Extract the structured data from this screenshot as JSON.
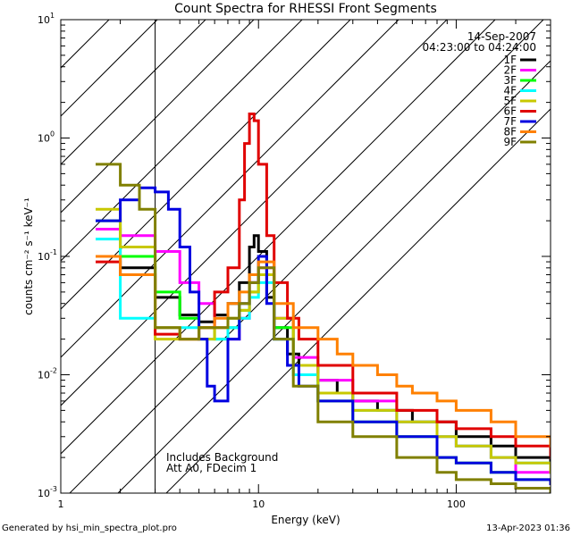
{
  "chart_data": {
    "type": "line",
    "title": "Count Spectra for RHESSI Front Segments",
    "xlabel": "Energy (keV)",
    "ylabel": "counts cm⁻² s⁻¹ keV⁻¹",
    "xscale": "log",
    "yscale": "log",
    "xlim": [
      1,
      300
    ],
    "ylim": [
      0.001,
      10
    ],
    "x_ticks": [
      {
        "value": 1,
        "label": "1"
      },
      {
        "value": 10,
        "label": "10"
      },
      {
        "value": 100,
        "label": "100"
      }
    ],
    "y_ticks": [
      {
        "value": 0.001,
        "base": "10",
        "exp": "-3"
      },
      {
        "value": 0.01,
        "base": "10",
        "exp": "-2"
      },
      {
        "value": 0.1,
        "base": "10",
        "exp": "-1"
      },
      {
        "value": 1,
        "base": "10",
        "exp": "0"
      },
      {
        "value": 10,
        "base": "10",
        "exp": "1"
      }
    ],
    "excluded_region_keV": [
      1,
      3
    ],
    "date": "14-Sep-2007",
    "time_range": "04:23:00 to 04:24:00",
    "annotation_lines": [
      "Includes Background",
      "Att A0, FDecim 1"
    ],
    "legend_position": "top-right",
    "series": [
      {
        "name": "1F",
        "color": "#000000",
        "x": [
          1.5,
          2,
          3,
          4,
          5,
          6,
          7,
          8,
          9,
          9.5,
          10,
          11,
          12,
          14,
          16,
          20,
          25,
          30,
          40,
          50,
          60,
          80,
          100,
          150,
          200,
          300
        ],
        "y": [
          0.1,
          0.08,
          0.045,
          0.032,
          0.028,
          0.032,
          0.04,
          0.06,
          0.12,
          0.15,
          0.11,
          0.045,
          0.025,
          0.015,
          0.012,
          0.009,
          0.007,
          0.006,
          0.005,
          0.005,
          0.004,
          0.004,
          0.003,
          0.0025,
          0.002,
          0.0015
        ]
      },
      {
        "name": "2F",
        "color": "#ff00ff",
        "x": [
          1.5,
          2,
          3,
          4,
          5,
          6,
          7,
          8,
          9,
          10,
          12,
          15,
          20,
          30,
          50,
          80,
          100,
          150,
          200,
          300
        ],
        "y": [
          0.17,
          0.15,
          0.11,
          0.06,
          0.04,
          0.025,
          0.02,
          0.03,
          0.06,
          0.08,
          0.03,
          0.014,
          0.009,
          0.006,
          0.004,
          0.003,
          0.0025,
          0.002,
          0.0015,
          0.0015
        ]
      },
      {
        "name": "3F",
        "color": "#00ff00",
        "x": [
          1.5,
          2,
          3,
          4,
          5,
          6,
          7,
          8,
          9,
          10,
          12,
          15,
          20,
          30,
          50,
          80,
          100,
          150,
          200,
          300
        ],
        "y": [
          0.2,
          0.1,
          0.05,
          0.03,
          0.025,
          0.02,
          0.025,
          0.035,
          0.05,
          0.07,
          0.025,
          0.01,
          0.006,
          0.004,
          0.003,
          0.002,
          0.0018,
          0.0015,
          0.0013,
          0.0012
        ]
      },
      {
        "name": "4F",
        "color": "#00ffff",
        "x": [
          1.5,
          2,
          3,
          4,
          5,
          6,
          7,
          8,
          9,
          10,
          12,
          15,
          20,
          30,
          50,
          80,
          100,
          150,
          200,
          300
        ],
        "y": [
          0.14,
          0.03,
          0.025,
          0.025,
          0.02,
          0.02,
          0.025,
          0.03,
          0.045,
          0.06,
          0.02,
          0.01,
          0.007,
          0.005,
          0.004,
          0.003,
          0.0025,
          0.002,
          0.0018,
          0.0015
        ]
      },
      {
        "name": "5F",
        "color": "#c8c800",
        "x": [
          1.5,
          2,
          3,
          4,
          5,
          6,
          7,
          8,
          9,
          10,
          12,
          15,
          20,
          30,
          50,
          80,
          100,
          150,
          200,
          300
        ],
        "y": [
          0.25,
          0.12,
          0.02,
          0.02,
          0.02,
          0.025,
          0.03,
          0.035,
          0.05,
          0.07,
          0.03,
          0.012,
          0.007,
          0.005,
          0.004,
          0.003,
          0.0025,
          0.002,
          0.0018,
          0.0015
        ]
      },
      {
        "name": "6F",
        "color": "#e00000",
        "x": [
          1.5,
          2,
          3,
          4,
          5,
          6,
          7,
          8,
          8.5,
          9,
          9.5,
          10,
          11,
          12,
          14,
          16,
          20,
          30,
          50,
          80,
          100,
          150,
          200,
          300
        ],
        "y": [
          0.09,
          0.07,
          0.022,
          0.02,
          0.025,
          0.05,
          0.08,
          0.3,
          0.9,
          1.6,
          1.4,
          0.6,
          0.15,
          0.06,
          0.03,
          0.02,
          0.012,
          0.007,
          0.005,
          0.004,
          0.0035,
          0.003,
          0.0025,
          0.002
        ]
      },
      {
        "name": "7F",
        "color": "#0000e0",
        "x": [
          1.5,
          2,
          2.5,
          3,
          3.5,
          4,
          4.5,
          5,
          5.5,
          6,
          7,
          8,
          9,
          10,
          11,
          12,
          14,
          16,
          20,
          30,
          50,
          80,
          100,
          150,
          200,
          300
        ],
        "y": [
          0.2,
          0.3,
          0.38,
          0.35,
          0.25,
          0.12,
          0.05,
          0.02,
          0.008,
          0.006,
          0.02,
          0.04,
          0.06,
          0.1,
          0.04,
          0.02,
          0.012,
          0.008,
          0.006,
          0.004,
          0.003,
          0.002,
          0.0018,
          0.0015,
          0.0013,
          0.0012
        ]
      },
      {
        "name": "8F",
        "color": "#ff8000",
        "x": [
          1.5,
          2,
          3,
          4,
          5,
          6,
          7,
          8,
          9,
          10,
          12,
          15,
          20,
          25,
          30,
          40,
          50,
          60,
          80,
          100,
          150,
          200,
          300
        ],
        "y": [
          0.1,
          0.07,
          0.025,
          0.02,
          0.025,
          0.03,
          0.04,
          0.05,
          0.07,
          0.09,
          0.04,
          0.025,
          0.02,
          0.015,
          0.012,
          0.01,
          0.008,
          0.007,
          0.006,
          0.005,
          0.004,
          0.003,
          0.0025
        ]
      },
      {
        "name": "9F",
        "color": "#808000",
        "x": [
          1.5,
          2,
          2.5,
          3,
          4,
          5,
          6,
          7,
          8,
          9,
          10,
          12,
          15,
          20,
          30,
          50,
          80,
          100,
          150,
          200,
          300
        ],
        "y": [
          0.6,
          0.4,
          0.25,
          0.025,
          0.02,
          0.025,
          0.025,
          0.03,
          0.04,
          0.06,
          0.08,
          0.02,
          0.008,
          0.004,
          0.003,
          0.002,
          0.0015,
          0.0013,
          0.0012,
          0.0011,
          0.001
        ]
      }
    ]
  },
  "footer": {
    "left": "Generated by hsi_min_spectra_plot.pro",
    "right": "13-Apr-2023 01:36"
  }
}
